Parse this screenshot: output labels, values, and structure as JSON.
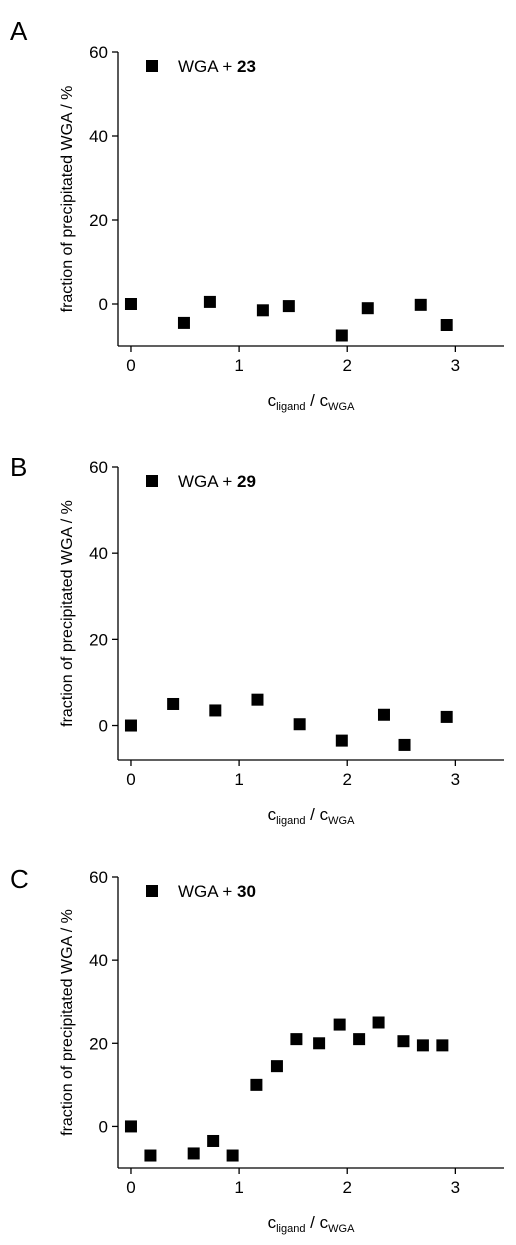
{
  "chart_data": [
    {
      "type": "scatter",
      "panel_label": "A",
      "legend": {
        "prefix": "WGA + ",
        "compound": "23",
        "placement": "top-left"
      },
      "ylabel": "fraction of precipitated WGA / %",
      "xlabel": {
        "c1": "c",
        "sub1": "ligand",
        "sep": " / ",
        "c2": "c",
        "sub2": "WGA"
      },
      "xlim": [
        -0.12,
        3.45
      ],
      "ylim": [
        -10,
        60
      ],
      "xticks": [
        0,
        1,
        2,
        3
      ],
      "yticks": [
        0,
        20,
        40,
        60
      ],
      "marker_color": "#000000",
      "points": [
        {
          "x": 0.0,
          "y": 0.0
        },
        {
          "x": 0.49,
          "y": -4.5
        },
        {
          "x": 0.73,
          "y": 0.5
        },
        {
          "x": 1.22,
          "y": -1.5
        },
        {
          "x": 1.46,
          "y": -0.5
        },
        {
          "x": 1.95,
          "y": -7.5
        },
        {
          "x": 2.19,
          "y": -1.0
        },
        {
          "x": 2.68,
          "y": -0.2
        },
        {
          "x": 2.92,
          "y": -5.0
        }
      ]
    },
    {
      "type": "scatter",
      "panel_label": "B",
      "legend": {
        "prefix": "WGA + ",
        "compound": "29",
        "placement": "top-left"
      },
      "ylabel": "fraction of precipitated WGA / %",
      "xlabel": {
        "c1": "c",
        "sub1": "ligand",
        "sep": " / ",
        "c2": "c",
        "sub2": "WGA"
      },
      "xlim": [
        -0.12,
        3.45
      ],
      "ylim": [
        -8,
        60
      ],
      "xticks": [
        0,
        1,
        2,
        3
      ],
      "yticks": [
        0,
        20,
        40,
        60
      ],
      "marker_color": "#000000",
      "points": [
        {
          "x": 0.0,
          "y": 0.0
        },
        {
          "x": 0.39,
          "y": 5.0
        },
        {
          "x": 0.78,
          "y": 3.5
        },
        {
          "x": 1.17,
          "y": 6.0
        },
        {
          "x": 1.56,
          "y": 0.3
        },
        {
          "x": 1.95,
          "y": -3.5
        },
        {
          "x": 2.34,
          "y": 2.5
        },
        {
          "x": 2.53,
          "y": -4.5
        },
        {
          "x": 2.92,
          "y": 2.0
        }
      ]
    },
    {
      "type": "scatter",
      "panel_label": "C",
      "legend": {
        "prefix": "WGA + ",
        "compound": "30",
        "placement": "top-left"
      },
      "ylabel": "fraction of precipitated WGA / %",
      "xlabel": {
        "c1": "c",
        "sub1": "ligand",
        "sep": " / ",
        "c2": "c",
        "sub2": "WGA"
      },
      "xlim": [
        -0.12,
        3.45
      ],
      "ylim": [
        -10,
        60
      ],
      "xticks": [
        0,
        1,
        2,
        3
      ],
      "yticks": [
        0,
        20,
        40,
        60
      ],
      "marker_color": "#000000",
      "points": [
        {
          "x": 0.0,
          "y": 0.0
        },
        {
          "x": 0.18,
          "y": -7.0
        },
        {
          "x": 0.58,
          "y": -6.5
        },
        {
          "x": 0.76,
          "y": -3.5
        },
        {
          "x": 0.94,
          "y": -7.0
        },
        {
          "x": 1.16,
          "y": 10.0
        },
        {
          "x": 1.35,
          "y": 14.5
        },
        {
          "x": 1.53,
          "y": 21.0
        },
        {
          "x": 1.74,
          "y": 20.0
        },
        {
          "x": 1.93,
          "y": 24.5
        },
        {
          "x": 2.11,
          "y": 21.0
        },
        {
          "x": 2.29,
          "y": 25.0
        },
        {
          "x": 2.52,
          "y": 20.5
        },
        {
          "x": 2.7,
          "y": 19.5
        },
        {
          "x": 2.88,
          "y": 19.5
        }
      ]
    }
  ]
}
